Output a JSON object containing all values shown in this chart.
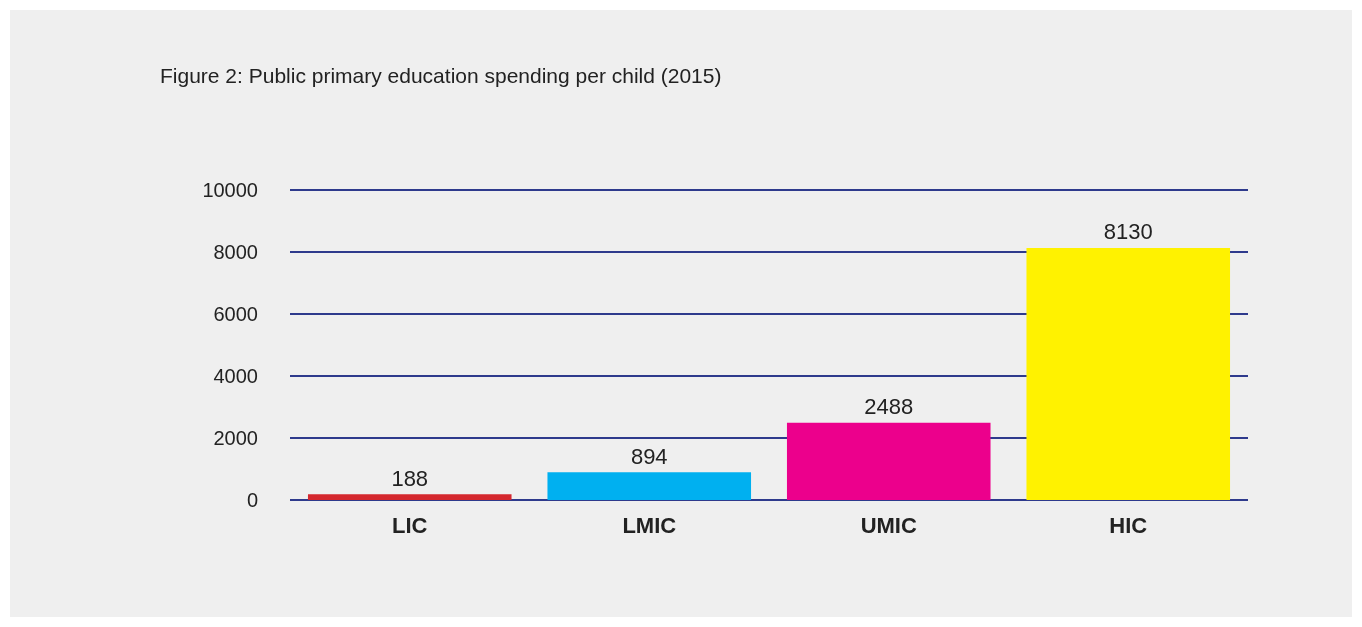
{
  "chart_data": {
    "type": "bar",
    "title": "Figure 2: Public primary education spending per child (2015)",
    "categories": [
      "LIC",
      "LMIC",
      "UMIC",
      "HIC"
    ],
    "values": [
      188,
      894,
      2488,
      8130
    ],
    "colors": [
      "#d4272e",
      "#00b0f0",
      "#ec008c",
      "#fff200"
    ],
    "ylim": [
      0,
      10000
    ],
    "yticks": [
      0,
      2000,
      4000,
      6000,
      8000,
      10000
    ],
    "grid": "y",
    "data_labels": true
  }
}
